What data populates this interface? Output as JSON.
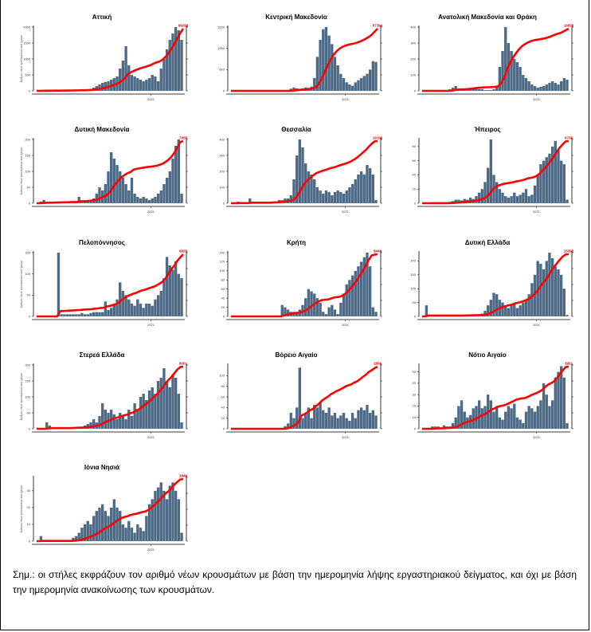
{
  "note": "Σημ.: οι στήλες εκφράζουν τον αριθμό νέων κρουσμάτων με βάση την ημερομηνία λήψης εργαστηριακού δείγματος, και όχι με βάση την ημερομηνία ανακοίνωσης των κρουσμάτων.",
  "colors": {
    "bars": "#4d6b87",
    "cumulative": "#ff0000"
  },
  "chart_data": [
    {
      "type": "bar+line",
      "title": "Αττική",
      "ylabel": "Αριθμός νέων κρουσμάτων ανά ημέρα",
      "xtick": "2021",
      "ylim": [
        0,
        2000
      ],
      "yticks": [
        0,
        500,
        1000,
        1500,
        2000
      ],
      "total": "96268",
      "values": [
        0,
        20,
        30,
        10,
        10,
        10,
        10,
        10,
        10,
        10,
        10,
        15,
        15,
        20,
        20,
        25,
        30,
        40,
        60,
        100,
        150,
        200,
        250,
        280,
        300,
        350,
        400,
        450,
        700,
        950,
        1400,
        800,
        500,
        450,
        400,
        350,
        300,
        350,
        400,
        500,
        450,
        300,
        700,
        1000,
        1300,
        1600,
        1800,
        2000,
        1900,
        1600
      ]
    },
    {
      "type": "bar+line",
      "title": "Κεντρική Μακεδονία",
      "xtick": "2021",
      "ylim": [
        0,
        1500
      ],
      "yticks": [
        0,
        500,
        1000,
        1500
      ],
      "total": "87394",
      "values": [
        0,
        0,
        0,
        0,
        0,
        0,
        0,
        0,
        0,
        0,
        0,
        0,
        0,
        0,
        0,
        0,
        0,
        0,
        0,
        0,
        50,
        80,
        60,
        50,
        60,
        80,
        70,
        100,
        300,
        800,
        1200,
        1450,
        1500,
        1300,
        1100,
        800,
        600,
        400,
        300,
        200,
        150,
        120,
        200,
        250,
        300,
        350,
        400,
        500,
        700,
        680
      ]
    },
    {
      "type": "bar+line",
      "title": "Ανατολική Μακεδονία και Θράκη",
      "xtick": "2021",
      "ylim": [
        0,
        400
      ],
      "yticks": [
        0,
        100,
        200,
        300,
        400
      ],
      "total": "16879",
      "values": [
        0,
        0,
        0,
        0,
        0,
        0,
        0,
        0,
        0,
        10,
        20,
        30,
        10,
        5,
        5,
        10,
        15,
        20,
        20,
        10,
        10,
        5,
        5,
        5,
        10,
        30,
        150,
        250,
        410,
        300,
        250,
        200,
        180,
        150,
        100,
        80,
        60,
        40,
        30,
        20,
        25,
        30,
        40,
        50,
        60,
        50,
        40,
        60,
        80,
        70
      ]
    },
    {
      "type": "bar+line",
      "title": "Δυτική Μακεδονία",
      "ylabel": "Αριθμός νέων κρουσμάτων ανά ημέρα",
      "xtick": "2021",
      "ylim": [
        0,
        200
      ],
      "yticks": [
        0,
        50,
        100,
        150,
        200
      ],
      "total": "7855",
      "values": [
        0,
        5,
        10,
        3,
        2,
        2,
        3,
        5,
        3,
        2,
        2,
        5,
        3,
        2,
        20,
        5,
        5,
        8,
        10,
        15,
        30,
        50,
        40,
        60,
        100,
        160,
        140,
        120,
        100,
        80,
        60,
        40,
        80,
        30,
        20,
        15,
        20,
        15,
        10,
        15,
        20,
        30,
        40,
        60,
        80,
        100,
        140,
        180,
        200,
        30
      ]
    },
    {
      "type": "bar+line",
      "title": "Θεσσαλία",
      "xtick": "2021",
      "ylim": [
        0,
        400
      ],
      "yticks": [
        0,
        100,
        200,
        300,
        400
      ],
      "total": "19199",
      "values": [
        0,
        0,
        10,
        0,
        0,
        0,
        30,
        0,
        0,
        0,
        0,
        0,
        0,
        10,
        10,
        10,
        20,
        20,
        30,
        30,
        50,
        150,
        300,
        400,
        350,
        250,
        200,
        180,
        150,
        100,
        80,
        60,
        80,
        70,
        50,
        70,
        80,
        70,
        60,
        80,
        100,
        120,
        150,
        180,
        200,
        180,
        240,
        220,
        180,
        20
      ]
    },
    {
      "type": "bar+line",
      "title": "Ήπειρος",
      "xtick": "2021",
      "ylim": [
        0,
        90
      ],
      "yticks": [
        0,
        20,
        40,
        60,
        80
      ],
      "total": "6738",
      "values": [
        0,
        0,
        1,
        0,
        0,
        0,
        0,
        0,
        0,
        2,
        3,
        5,
        5,
        4,
        6,
        5,
        8,
        6,
        10,
        15,
        20,
        30,
        50,
        90,
        40,
        30,
        20,
        15,
        10,
        8,
        10,
        15,
        10,
        12,
        15,
        20,
        10,
        12,
        25,
        40,
        55,
        60,
        65,
        70,
        80,
        88,
        75,
        60,
        55,
        5
      ]
    },
    {
      "type": "bar+line",
      "title": "Πελοπόννησος",
      "ylabel": "Αριθμός νέων κρουσμάτων ανά ημέρα",
      "xtick": "2021",
      "ylim": [
        0,
        150
      ],
      "yticks": [
        0,
        50,
        100,
        150
      ],
      "total": "6825",
      "values": [
        0,
        0,
        0,
        0,
        0,
        0,
        0,
        150,
        5,
        5,
        5,
        5,
        5,
        5,
        5,
        8,
        5,
        5,
        8,
        10,
        10,
        10,
        10,
        35,
        15,
        20,
        30,
        40,
        80,
        60,
        50,
        40,
        30,
        25,
        40,
        30,
        20,
        30,
        30,
        25,
        40,
        50,
        60,
        90,
        140,
        120,
        110,
        130,
        100,
        90
      ]
    },
    {
      "type": "bar+line",
      "title": "Κρήτη",
      "xtick": "2021",
      "ylim": [
        0,
        140
      ],
      "yticks": [
        0,
        20,
        40,
        60,
        80,
        100,
        120,
        140
      ],
      "total": "8448",
      "values": [
        0,
        0,
        0,
        0,
        0,
        0,
        0,
        0,
        0,
        0,
        0,
        0,
        0,
        0,
        0,
        0,
        0,
        25,
        20,
        15,
        10,
        10,
        10,
        15,
        25,
        40,
        60,
        55,
        50,
        40,
        30,
        10,
        5,
        20,
        25,
        15,
        5,
        30,
        50,
        70,
        80,
        90,
        100,
        110,
        120,
        130,
        140,
        110,
        20,
        10
      ]
    },
    {
      "type": "bar+line",
      "title": "Δυτική Ελλάδα",
      "xtick": "2021",
      "ylim": [
        0,
        230
      ],
      "yticks": [
        0,
        50,
        100,
        150,
        200
      ],
      "total": "15395",
      "values": [
        0,
        40,
        0,
        0,
        0,
        0,
        0,
        0,
        0,
        0,
        0,
        0,
        0,
        2,
        3,
        3,
        4,
        5,
        5,
        5,
        10,
        20,
        40,
        60,
        85,
        80,
        60,
        50,
        40,
        30,
        40,
        50,
        30,
        40,
        50,
        60,
        80,
        120,
        150,
        200,
        190,
        170,
        200,
        230,
        210,
        180,
        170,
        150,
        100,
        5
      ]
    },
    {
      "type": "bar+line",
      "title": "Στερεά Ελλάδα",
      "ylabel": "Αριθμός νέων κρουσμάτων ανά ημέρα",
      "xtick": "2021",
      "ylim": [
        0,
        200
      ],
      "yticks": [
        0,
        50,
        100,
        150,
        200
      ],
      "total": "8001",
      "values": [
        0,
        0,
        0,
        20,
        10,
        0,
        0,
        0,
        0,
        0,
        0,
        5,
        5,
        5,
        5,
        5,
        10,
        15,
        20,
        30,
        20,
        40,
        80,
        60,
        50,
        60,
        45,
        30,
        50,
        40,
        30,
        60,
        40,
        80,
        60,
        100,
        110,
        90,
        120,
        130,
        110,
        150,
        160,
        190,
        150,
        130,
        170,
        160,
        110,
        20
      ]
    },
    {
      "type": "bar+line",
      "title": "Βόρειο Αιγαίο",
      "xtick": "2021",
      "ylim": [
        0,
        120
      ],
      "yticks": [
        0,
        20,
        40,
        60,
        80,
        100
      ],
      "total": "2856",
      "values": [
        0,
        0,
        0,
        0,
        0,
        0,
        0,
        0,
        0,
        0,
        0,
        0,
        0,
        0,
        0,
        0,
        0,
        0,
        5,
        10,
        30,
        20,
        40,
        115,
        20,
        30,
        40,
        20,
        45,
        40,
        50,
        35,
        30,
        40,
        25,
        30,
        20,
        25,
        30,
        20,
        15,
        30,
        20,
        35,
        40,
        35,
        45,
        30,
        35,
        25
      ]
    },
    {
      "type": "bar+line",
      "title": "Νότιο Αιγαίο",
      "xtick": "2021",
      "ylim": [
        0,
        56
      ],
      "yticks": [
        0,
        10,
        20,
        30,
        40,
        50
      ],
      "total": "3951",
      "values": [
        0,
        0,
        0,
        2,
        2,
        2,
        1,
        3,
        2,
        2,
        5,
        10,
        20,
        25,
        15,
        10,
        12,
        18,
        20,
        25,
        18,
        20,
        30,
        25,
        15,
        20,
        10,
        8,
        15,
        20,
        18,
        22,
        10,
        8,
        5,
        15,
        20,
        18,
        15,
        20,
        25,
        40,
        30,
        20,
        25,
        45,
        50,
        55,
        45,
        5
      ]
    },
    {
      "type": "bar+line",
      "title": "Ιόνια Νησιά",
      "ylabel": "Αριθμός νέων κρουσμάτων ανά ημέρα",
      "xtick": "2021",
      "ylim": [
        0,
        38
      ],
      "yticks": [
        0,
        10,
        20,
        30
      ],
      "total": "1848",
      "values": [
        0,
        3,
        0,
        0,
        0,
        0,
        0,
        0,
        0,
        0,
        0,
        0,
        2,
        3,
        5,
        8,
        10,
        12,
        10,
        15,
        18,
        20,
        22,
        18,
        15,
        20,
        25,
        20,
        18,
        10,
        8,
        12,
        8,
        5,
        10,
        8,
        6,
        15,
        22,
        25,
        30,
        32,
        35,
        30,
        25,
        33,
        35,
        30,
        25,
        5
      ]
    }
  ]
}
